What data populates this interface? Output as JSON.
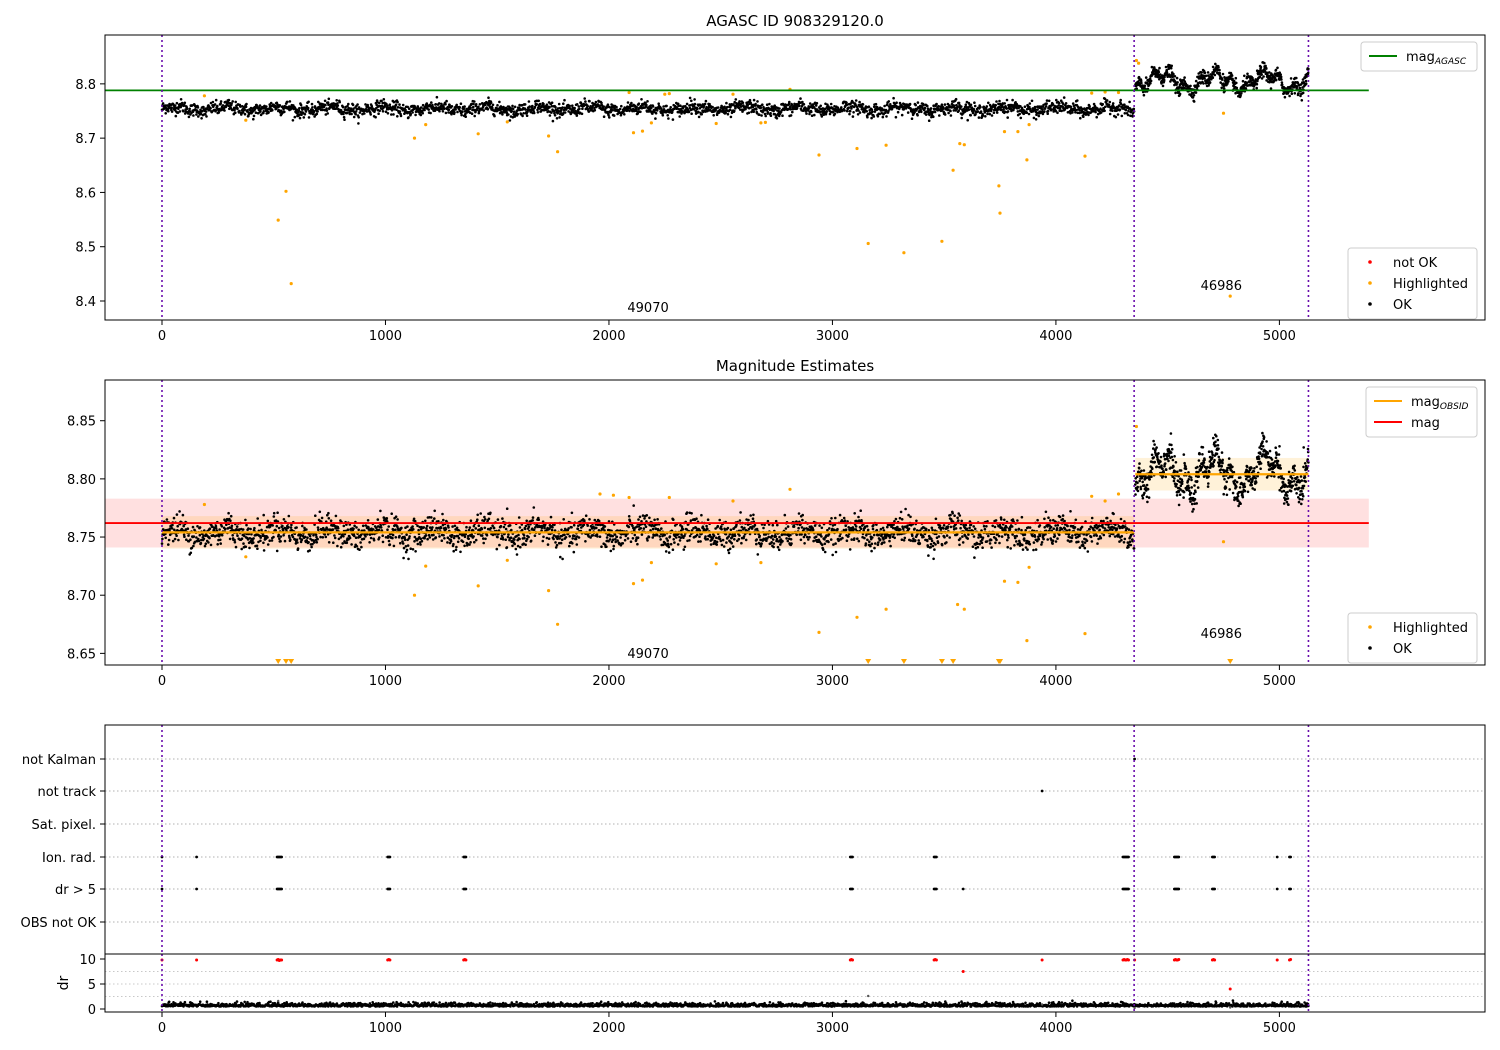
{
  "chart_data": [
    {
      "type": "scatter",
      "title": "AGASC ID 908329120.0",
      "xlim": [
        -255,
        5920
      ],
      "ylim": [
        8.365,
        8.89
      ],
      "x_ticks": [
        0,
        1000,
        2000,
        3000,
        4000,
        5000
      ],
      "y_ticks": [
        8.4,
        8.5,
        8.6,
        8.7,
        8.8
      ],
      "y_tick_labels": [
        "8.4",
        "8.5",
        "8.6",
        "8.7",
        "8.8"
      ],
      "obsid_boundaries": [
        0,
        4350,
        5130
      ],
      "obsid_labels": [
        {
          "text": "49070",
          "x": 2175,
          "y": 8.38
        },
        {
          "text": "46986",
          "x": 4740,
          "y": 8.42
        }
      ],
      "reference_lines": [
        {
          "name": "magAGASC",
          "y": 8.788,
          "x": [
            -255,
            5400
          ],
          "color": "#008000"
        }
      ],
      "ok_segments": [
        {
          "x0": 0,
          "x1": 4350,
          "y": 8.754,
          "jitter": 0.011,
          "n": 2600,
          "wave": 0.004
        },
        {
          "x0": 4355,
          "x1": 5130,
          "y": 8.805,
          "jitter": 0.012,
          "n": 700,
          "wave": 0.014
        }
      ],
      "highlighted_points": [
        [
          190,
          8.778
        ],
        [
          375,
          8.733
        ],
        [
          520,
          8.549
        ],
        [
          555,
          8.602
        ],
        [
          578,
          8.432
        ],
        [
          1130,
          8.7
        ],
        [
          1180,
          8.725
        ],
        [
          1415,
          8.708
        ],
        [
          1545,
          8.73
        ],
        [
          1730,
          8.704
        ],
        [
          1770,
          8.675
        ],
        [
          2090,
          8.784
        ],
        [
          2110,
          8.71
        ],
        [
          2150,
          8.713
        ],
        [
          2190,
          8.728
        ],
        [
          2250,
          8.781
        ],
        [
          2270,
          8.782
        ],
        [
          2480,
          8.727
        ],
        [
          2555,
          8.781
        ],
        [
          2680,
          8.728
        ],
        [
          2700,
          8.729
        ],
        [
          2810,
          8.79
        ],
        [
          2940,
          8.669
        ],
        [
          3110,
          8.681
        ],
        [
          3160,
          8.506
        ],
        [
          3240,
          8.687
        ],
        [
          3320,
          8.489
        ],
        [
          3490,
          8.51
        ],
        [
          3540,
          8.641
        ],
        [
          3570,
          8.69
        ],
        [
          3590,
          8.688
        ],
        [
          3745,
          8.612
        ],
        [
          3750,
          8.562
        ],
        [
          3770,
          8.712
        ],
        [
          3830,
          8.712
        ],
        [
          3870,
          8.66
        ],
        [
          3880,
          8.725
        ],
        [
          4130,
          8.667
        ],
        [
          4160,
          8.783
        ],
        [
          4220,
          8.785
        ],
        [
          4280,
          8.784
        ],
        [
          4360,
          8.843
        ],
        [
          4370,
          8.838
        ],
        [
          4750,
          8.746
        ],
        [
          4780,
          8.409
        ]
      ],
      "legend": {
        "placement": "upper-right",
        "entries": [
          {
            "label": "mag",
            "sub": "AGASC",
            "color": "#008000",
            "marker": "line"
          }
        ]
      },
      "legend2": {
        "placement": "lower-right",
        "entries": [
          {
            "label": "not OK",
            "color": "#ff0000",
            "marker": "dot"
          },
          {
            "label": "Highlighted",
            "color": "#ffa500",
            "marker": "dot"
          },
          {
            "label": "OK",
            "color": "#000000",
            "marker": "dot"
          }
        ]
      }
    },
    {
      "type": "scatter",
      "title": "Magnitude Estimates",
      "xlim": [
        -255,
        5920
      ],
      "ylim": [
        8.64,
        8.885
      ],
      "x_ticks": [
        0,
        1000,
        2000,
        3000,
        4000,
        5000
      ],
      "y_ticks": [
        8.65,
        8.7,
        8.75,
        8.8,
        8.85
      ],
      "y_tick_labels": [
        "8.65",
        "8.70",
        "8.75",
        "8.80",
        "8.85"
      ],
      "obsid_boundaries": [
        0,
        4350,
        5130
      ],
      "obsid_labels": [
        {
          "text": "49070",
          "x": 2175,
          "y": 8.646
        },
        {
          "text": "46986",
          "x": 4740,
          "y": 8.663
        }
      ],
      "mag": {
        "y": 8.762,
        "band": [
          8.741,
          8.783
        ],
        "x": [
          -255,
          5400
        ],
        "color": "#ff0000"
      },
      "mag_obsid": [
        {
          "x0": 0,
          "x1": 4350,
          "y": 8.754,
          "band": [
            8.74,
            8.768
          ]
        },
        {
          "x0": 4355,
          "x1": 5130,
          "y": 8.804,
          "band": [
            8.79,
            8.818
          ]
        }
      ],
      "ok_segments": [
        {
          "x0": 0,
          "x1": 4350,
          "y": 8.754,
          "jitter": 0.011,
          "n": 2600,
          "wave": 0.004
        },
        {
          "x0": 4355,
          "x1": 5130,
          "y": 8.805,
          "jitter": 0.012,
          "n": 700,
          "wave": 0.014
        }
      ],
      "highlighted_points": [
        [
          190,
          8.778
        ],
        [
          375,
          8.733
        ],
        [
          1130,
          8.7
        ],
        [
          1180,
          8.725
        ],
        [
          1415,
          8.708
        ],
        [
          1545,
          8.73
        ],
        [
          1730,
          8.704
        ],
        [
          1770,
          8.675
        ],
        [
          1960,
          8.787
        ],
        [
          2020,
          8.786
        ],
        [
          2090,
          8.784
        ],
        [
          2110,
          8.71
        ],
        [
          2150,
          8.713
        ],
        [
          2190,
          8.728
        ],
        [
          2270,
          8.784
        ],
        [
          2480,
          8.727
        ],
        [
          2555,
          8.781
        ],
        [
          2680,
          8.728
        ],
        [
          2810,
          8.791
        ],
        [
          2940,
          8.668
        ],
        [
          3110,
          8.681
        ],
        [
          3240,
          8.688
        ],
        [
          3560,
          8.692
        ],
        [
          3590,
          8.688
        ],
        [
          3770,
          8.712
        ],
        [
          3830,
          8.711
        ],
        [
          3880,
          8.724
        ],
        [
          3870,
          8.661
        ],
        [
          4130,
          8.667
        ],
        [
          4160,
          8.785
        ],
        [
          4220,
          8.781
        ],
        [
          4280,
          8.787
        ],
        [
          4360,
          8.845
        ],
        [
          4750,
          8.746
        ]
      ],
      "clipped_low_x": [
        520,
        555,
        578,
        3160,
        3320,
        3490,
        3540,
        3745,
        3750,
        4780
      ],
      "legend": {
        "placement": "upper-right",
        "entries": [
          {
            "label": "mag",
            "sub": "OBSID",
            "color": "#ffa500",
            "marker": "line"
          },
          {
            "label": "mag",
            "sub": "",
            "color": "#ff0000",
            "marker": "line"
          }
        ]
      },
      "legend2": {
        "placement": "lower-right",
        "entries": [
          {
            "label": "Highlighted",
            "color": "#ffa500",
            "marker": "dot"
          },
          {
            "label": "OK",
            "color": "#000000",
            "marker": "dot"
          }
        ]
      }
    },
    {
      "type": "scatter",
      "title": "",
      "xlim": [
        -255,
        5920
      ],
      "obsid_boundaries": [
        0,
        4350,
        5130
      ],
      "flag_rows": [
        "not Kalman",
        "not track",
        "Sat. pixel.",
        "Ion. rad.",
        "dr > 5",
        "OBS not OK"
      ],
      "flag_points": {
        "not Kalman": [
          4352
        ],
        "not track": [
          3938
        ],
        "Sat. pixel.": [],
        "Ion. rad.": [
          0,
          155,
          515,
          520,
          525,
          530,
          535,
          1010,
          1015,
          1020,
          1350,
          1355,
          1360,
          3080,
          3085,
          3090,
          3455,
          3460,
          3465,
          4300,
          4305,
          4310,
          4315,
          4320,
          4325,
          4530,
          4535,
          4540,
          4545,
          4550,
          4700,
          4705,
          4710,
          4990,
          5045,
          5050
        ],
        "dr > 5": [
          0,
          155,
          515,
          520,
          525,
          530,
          535,
          1010,
          1015,
          1020,
          1350,
          1355,
          1360,
          3080,
          3085,
          3090,
          3455,
          3460,
          3465,
          3585,
          4300,
          4305,
          4310,
          4315,
          4320,
          4325,
          4530,
          4535,
          4540,
          4545,
          4550,
          4700,
          4705,
          4710,
          4990,
          5045,
          5050
        ],
        "OBS not OK": []
      }
    },
    {
      "type": "scatter",
      "ylabel": "dr",
      "xlim": [
        -255,
        5920
      ],
      "ylim": [
        -0.6,
        11
      ],
      "x_ticks": [
        0,
        1000,
        2000,
        3000,
        4000,
        5000
      ],
      "y_ticks": [
        0,
        5,
        10
      ],
      "y_tick_labels": [
        "0",
        "5",
        "10"
      ],
      "obsid_boundaries": [
        0,
        4350,
        5130
      ],
      "dr_ok": {
        "x0": 0,
        "x1": 5130,
        "mean": 0.5,
        "spread": 0.35,
        "n": 2400
      },
      "dr_extra_ok": [
        [
          520,
          1.6
        ],
        [
          3160,
          2.6
        ],
        [
          3938,
          0.9
        ],
        [
          4352,
          0.2
        ],
        [
          4780,
          0.3
        ]
      ],
      "dr_notok": [
        [
          0,
          9.8
        ],
        [
          155,
          9.8
        ],
        [
          515,
          9.8
        ],
        [
          520,
          9.9
        ],
        [
          525,
          9.7
        ],
        [
          530,
          9.8
        ],
        [
          535,
          9.8
        ],
        [
          1010,
          9.8
        ],
        [
          1015,
          9.9
        ],
        [
          1020,
          9.8
        ],
        [
          1350,
          9.8
        ],
        [
          1355,
          9.9
        ],
        [
          1360,
          9.8
        ],
        [
          3080,
          9.8
        ],
        [
          3085,
          9.9
        ],
        [
          3090,
          9.8
        ],
        [
          3455,
          9.8
        ],
        [
          3460,
          9.9
        ],
        [
          3465,
          9.8
        ],
        [
          3585,
          7.5
        ],
        [
          3938,
          9.8
        ],
        [
          4300,
          9.8
        ],
        [
          4305,
          9.9
        ],
        [
          4310,
          9.8
        ],
        [
          4315,
          9.8
        ],
        [
          4320,
          9.9
        ],
        [
          4325,
          9.8
        ],
        [
          4352,
          9.8
        ],
        [
          4530,
          9.8
        ],
        [
          4535,
          9.9
        ],
        [
          4540,
          9.8
        ],
        [
          4545,
          9.8
        ],
        [
          4550,
          9.9
        ],
        [
          4700,
          9.8
        ],
        [
          4705,
          9.9
        ],
        [
          4710,
          9.8
        ],
        [
          4780,
          4.0
        ],
        [
          4990,
          9.8
        ],
        [
          5045,
          9.8
        ],
        [
          5050,
          9.9
        ]
      ]
    }
  ]
}
